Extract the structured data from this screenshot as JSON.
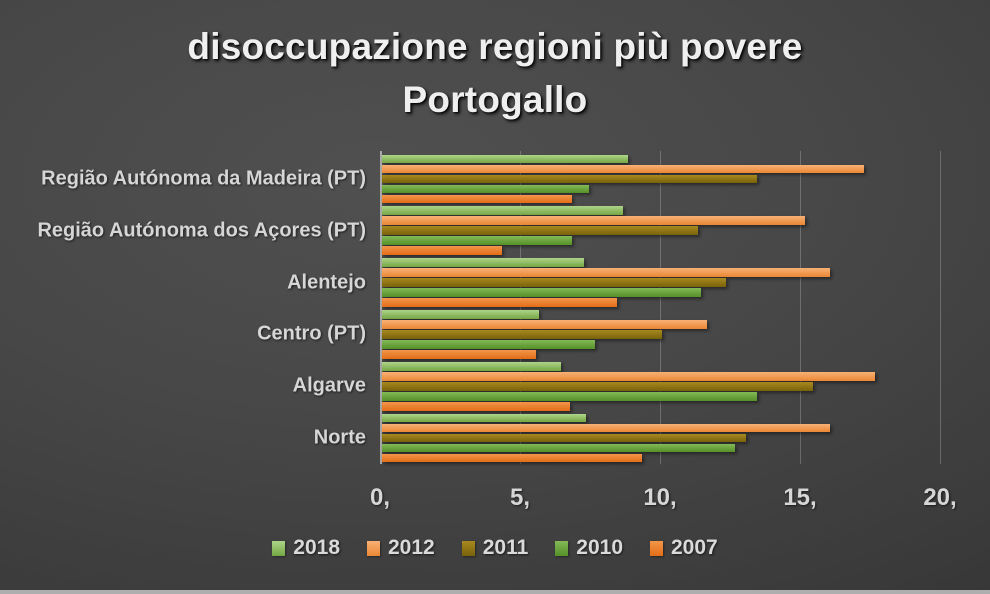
{
  "slide": {
    "title_line1": "disoccupazione regioni più povere",
    "title_line2": "Portogallo"
  },
  "chart_data": {
    "type": "bar",
    "orientation": "horizontal",
    "title": "disoccupazione regioni più povere Portogallo",
    "categories": [
      "Região Autónoma da Madeira (PT)",
      "Região Autónoma dos Açores (PT)",
      "Alentejo",
      "Centro (PT)",
      "Algarve",
      "Norte"
    ],
    "series": [
      {
        "name": "2018",
        "color": "#8fbe58",
        "gradient": [
          "#aed489",
          "#74a743"
        ],
        "values": [
          8.8,
          8.6,
          7.2,
          5.6,
          6.4,
          7.3
        ]
      },
      {
        "name": "2012",
        "color": "#f19d5b",
        "gradient": [
          "#f8b175",
          "#eb8734"
        ],
        "values": [
          17.2,
          15.1,
          16.0,
          11.6,
          17.6,
          16.0
        ]
      },
      {
        "name": "2011",
        "color": "#8e7414",
        "gradient": [
          "#a8891f",
          "#79620b"
        ],
        "values": [
          13.4,
          11.3,
          12.3,
          10.0,
          15.4,
          13.0
        ]
      },
      {
        "name": "2010",
        "color": "#6ca73d",
        "gradient": [
          "#83ba57",
          "#559028"
        ],
        "values": [
          7.4,
          6.8,
          11.4,
          7.6,
          13.4,
          12.6
        ]
      },
      {
        "name": "2007",
        "color": "#e87d2e",
        "gradient": [
          "#f3964a",
          "#e26d18"
        ],
        "values": [
          6.8,
          4.3,
          8.4,
          5.5,
          6.7,
          9.3
        ]
      }
    ],
    "x_axis": {
      "min": 0,
      "max": 20,
      "ticks": [
        {
          "label": "0,",
          "value": 0
        },
        {
          "label": "5,",
          "value": 5
        },
        {
          "label": "10,",
          "value": 10
        },
        {
          "label": "15,",
          "value": 15
        },
        {
          "label": "20,",
          "value": 20
        }
      ]
    },
    "legend_position": "bottom",
    "grid": true
  }
}
